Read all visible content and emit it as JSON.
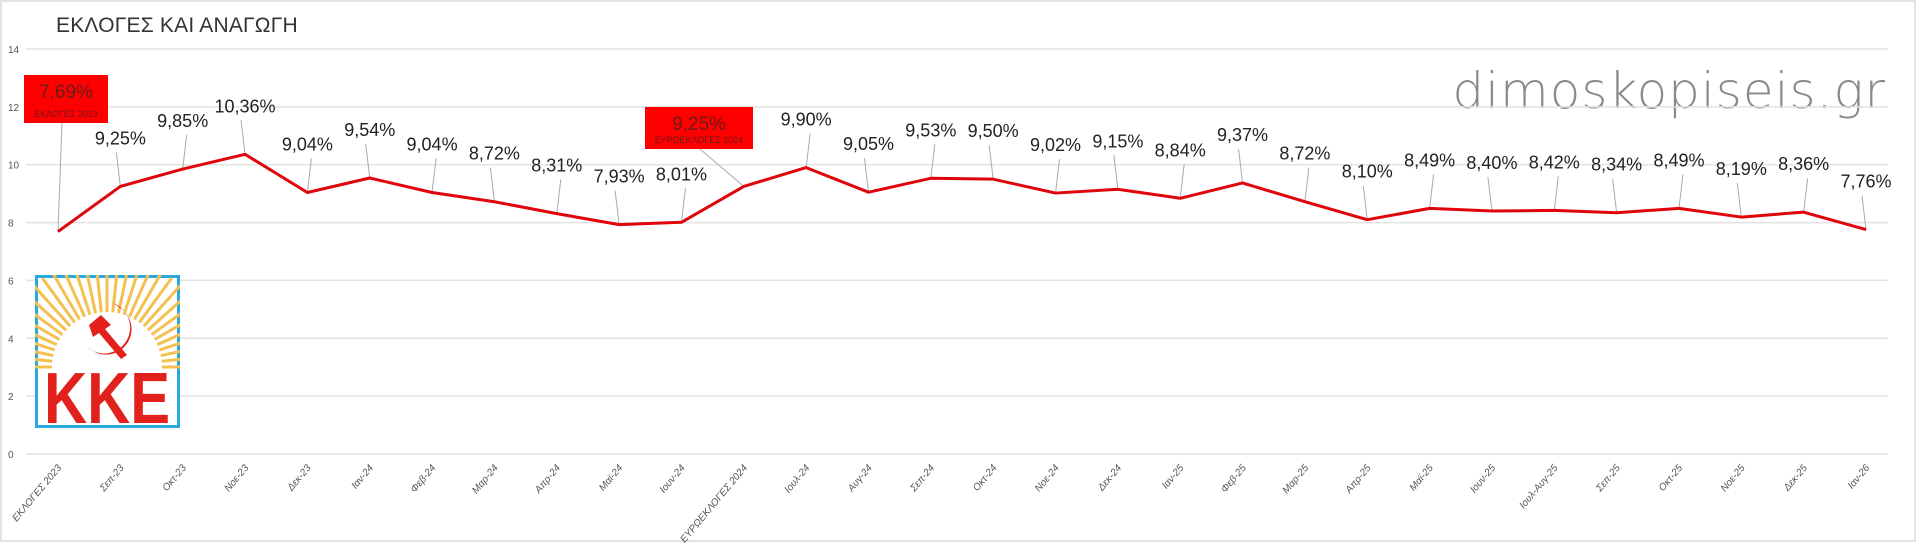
{
  "title": "ΕΚΛΟΓΕΣ ΚΑΙ ΑΝΑΓΩΓΗ",
  "watermark": "dimoskopiseis.gr",
  "logo_text": "KKE",
  "colors": {
    "line": "#e0040b",
    "grid": "#e3e3e3",
    "highlight_box": "#ff0000",
    "logo_frame": "#29a9e0"
  },
  "chart_data": {
    "type": "line",
    "title": "ΕΚΛΟΓΕΣ ΚΑΙ ΑΝΑΓΩΓΗ",
    "xlabel": "",
    "ylabel": "",
    "ylim": [
      0,
      14
    ],
    "yticks": [
      0,
      2,
      4,
      6,
      8,
      10,
      12,
      14
    ],
    "grid": true,
    "categories": [
      "ΕΚΛΟΓΕΣ 2023",
      "Σεπ-23",
      "Οκτ-23",
      "Νοε-23",
      "Δεκ-23",
      "Ιαν-24",
      "Φεβ-24",
      "Μαρ-24",
      "Απρ-24",
      "Μαϊ-24",
      "Ιουν-24",
      "ΕΥΡΩΕΚΛΟΓΕΣ 2024",
      "Ιουλ-24",
      "Αυγ-24",
      "Σεπ-24",
      "Οκτ-24",
      "Νοε-24",
      "Δεκ-24",
      "Ιαν-25",
      "Φεβ-25",
      "Μαρ-25",
      "Απρ-25",
      "Μαϊ-25",
      "Ιουν-25",
      "Ιουλ-Αυγ-25",
      "Σεπ-25",
      "Οκτ-25",
      "Νοε-25",
      "Δεκ-25",
      "Ιαν-26"
    ],
    "values": [
      7.69,
      9.25,
      9.85,
      10.36,
      9.04,
      9.54,
      9.04,
      8.72,
      8.31,
      7.93,
      8.01,
      9.25,
      9.9,
      9.05,
      9.53,
      9.5,
      9.02,
      9.15,
      8.84,
      9.37,
      8.72,
      8.1,
      8.49,
      8.4,
      8.42,
      8.34,
      8.49,
      8.19,
      8.36,
      7.76
    ],
    "data_labels": [
      "7,69%",
      "9,25%",
      "9,85%",
      "10,36%",
      "9,04%",
      "9,54%",
      "9,04%",
      "8,72%",
      "8,31%",
      "7,93%",
      "8,01%",
      "9,25%",
      "9,90%",
      "9,05%",
      "9,53%",
      "9,50%",
      "9,02%",
      "9,15%",
      "8,84%",
      "9,37%",
      "8,72%",
      "8,10%",
      "8,49%",
      "8,40%",
      "8,42%",
      "8,34%",
      "8,49%",
      "8,19%",
      "8,36%",
      "7,76%"
    ],
    "highlighted": [
      {
        "index": 0,
        "label": "7,69%",
        "sublabel": "ΕΚΛΟΓΕΣ 2023"
      },
      {
        "index": 11,
        "label": "9,25%",
        "sublabel": "ΕΥΡΩΕΚΛΟΓΕΣ 2024"
      }
    ]
  }
}
